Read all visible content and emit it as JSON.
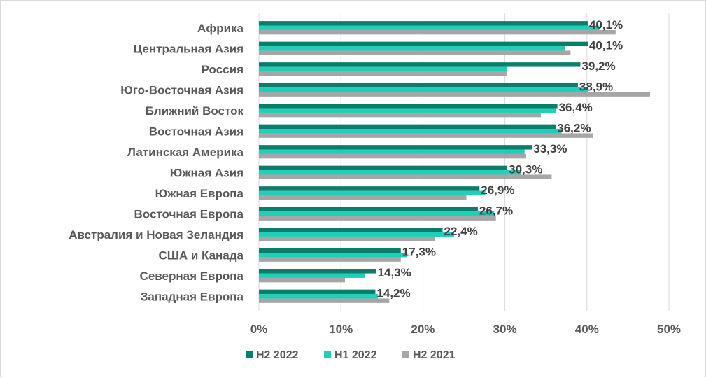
{
  "chart_data": {
    "type": "bar",
    "orientation": "horizontal",
    "categories": [
      "Африка",
      "Центральная Азия",
      "Россия",
      "Юго-Восточная Азия",
      "Ближний Восток",
      "Восточная Азия",
      "Латинская Америка",
      "Южная Азия",
      "Южная Европа",
      "Восточная Европа",
      "Австралия и Новая Зеландия",
      "США и Канада",
      "Северная Европа",
      "Западная Европа"
    ],
    "series": [
      {
        "name": "H2 2022",
        "color": "#0b7d6a",
        "values": [
          40.1,
          40.1,
          39.2,
          38.9,
          36.4,
          36.2,
          33.3,
          30.3,
          26.9,
          26.7,
          22.4,
          17.3,
          14.3,
          14.2
        ]
      },
      {
        "name": "H1 2022",
        "color": "#1fcfb8",
        "values": [
          41.5,
          37.3,
          30.3,
          40.1,
          36.2,
          36.9,
          32.4,
          31.9,
          27.6,
          28.7,
          23.8,
          18.1,
          12.9,
          14.5
        ]
      },
      {
        "name": "H2 2021",
        "color": "#a6a6a6",
        "values": [
          43.5,
          38.0,
          30.2,
          47.7,
          34.4,
          40.7,
          32.6,
          35.7,
          25.3,
          28.9,
          21.5,
          17.3,
          10.5,
          15.9
        ]
      }
    ],
    "data_labels": [
      "40,1%",
      "40,1%",
      "39,2%",
      "38,9%",
      "36,4%",
      "36,2%",
      "33,3%",
      "30,3%",
      "26,9%",
      "26,7%",
      "22,4%",
      "17,3%",
      "14,3%",
      "14,2%"
    ],
    "x_ticks": [
      0,
      10,
      20,
      30,
      40,
      50
    ],
    "x_tick_labels": [
      "0%",
      "10%",
      "20%",
      "30%",
      "40%",
      "50%"
    ],
    "xlim": [
      0,
      50
    ],
    "grid": "vertical",
    "legend_position": "bottom",
    "title": "",
    "xlabel": "",
    "ylabel": ""
  }
}
